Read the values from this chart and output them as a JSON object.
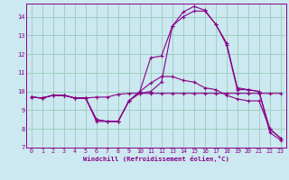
{
  "xlabel": "Windchill (Refroidissement éolien,°C)",
  "bg_color": "#cce8f0",
  "line_color": "#880088",
  "grid_color": "#99ccbb",
  "xlim": [
    -0.5,
    23.5
  ],
  "ylim": [
    7.0,
    14.7
  ],
  "yticks": [
    7,
    8,
    9,
    10,
    11,
    12,
    13,
    14
  ],
  "xticks": [
    0,
    1,
    2,
    3,
    4,
    5,
    6,
    7,
    8,
    9,
    10,
    11,
    12,
    13,
    14,
    15,
    16,
    17,
    18,
    19,
    20,
    21,
    22,
    23
  ],
  "lines": [
    {
      "x": [
        0,
        1,
        2,
        3,
        4,
        5,
        6,
        7,
        8,
        9,
        10,
        11,
        12,
        13,
        14,
        15,
        16,
        17,
        18,
        19,
        20,
        21,
        22,
        23
      ],
      "y": [
        9.7,
        9.65,
        9.8,
        9.8,
        9.65,
        9.65,
        9.7,
        9.7,
        9.85,
        9.9,
        9.9,
        9.9,
        9.9,
        9.9,
        9.9,
        9.9,
        9.9,
        9.9,
        9.9,
        9.9,
        9.9,
        9.9,
        9.9,
        9.9
      ]
    },
    {
      "x": [
        0,
        1,
        2,
        3,
        4,
        5,
        6,
        7,
        8,
        9,
        10,
        11,
        12,
        13,
        14,
        15,
        16,
        17,
        18,
        19,
        20,
        21,
        22,
        23
      ],
      "y": [
        9.7,
        9.65,
        9.8,
        9.8,
        9.65,
        9.65,
        8.5,
        8.4,
        8.4,
        9.5,
        10.0,
        10.45,
        10.8,
        10.8,
        10.6,
        10.5,
        10.2,
        10.1,
        9.8,
        9.6,
        9.5,
        9.5,
        8.0,
        7.5
      ]
    },
    {
      "x": [
        0,
        1,
        2,
        3,
        4,
        5,
        6,
        7,
        8,
        9,
        10,
        11,
        12,
        13,
        14,
        15,
        16,
        17,
        18,
        19,
        20,
        21,
        22,
        23
      ],
      "y": [
        9.7,
        9.65,
        9.8,
        9.8,
        9.65,
        9.65,
        8.5,
        8.4,
        8.4,
        9.5,
        10.0,
        11.8,
        11.9,
        13.5,
        14.0,
        14.3,
        14.3,
        13.6,
        12.6,
        10.2,
        10.1,
        10.0,
        8.0,
        7.5
      ]
    },
    {
      "x": [
        0,
        1,
        2,
        3,
        4,
        5,
        6,
        7,
        8,
        9,
        10,
        11,
        12,
        13,
        14,
        15,
        16,
        17,
        18,
        19,
        20,
        21,
        22,
        23
      ],
      "y": [
        9.7,
        9.65,
        9.8,
        9.8,
        9.65,
        9.65,
        8.4,
        8.4,
        8.4,
        9.5,
        9.9,
        10.0,
        10.5,
        13.5,
        14.25,
        14.55,
        14.35,
        13.6,
        12.5,
        10.1,
        10.1,
        10.0,
        7.8,
        7.4
      ]
    }
  ]
}
